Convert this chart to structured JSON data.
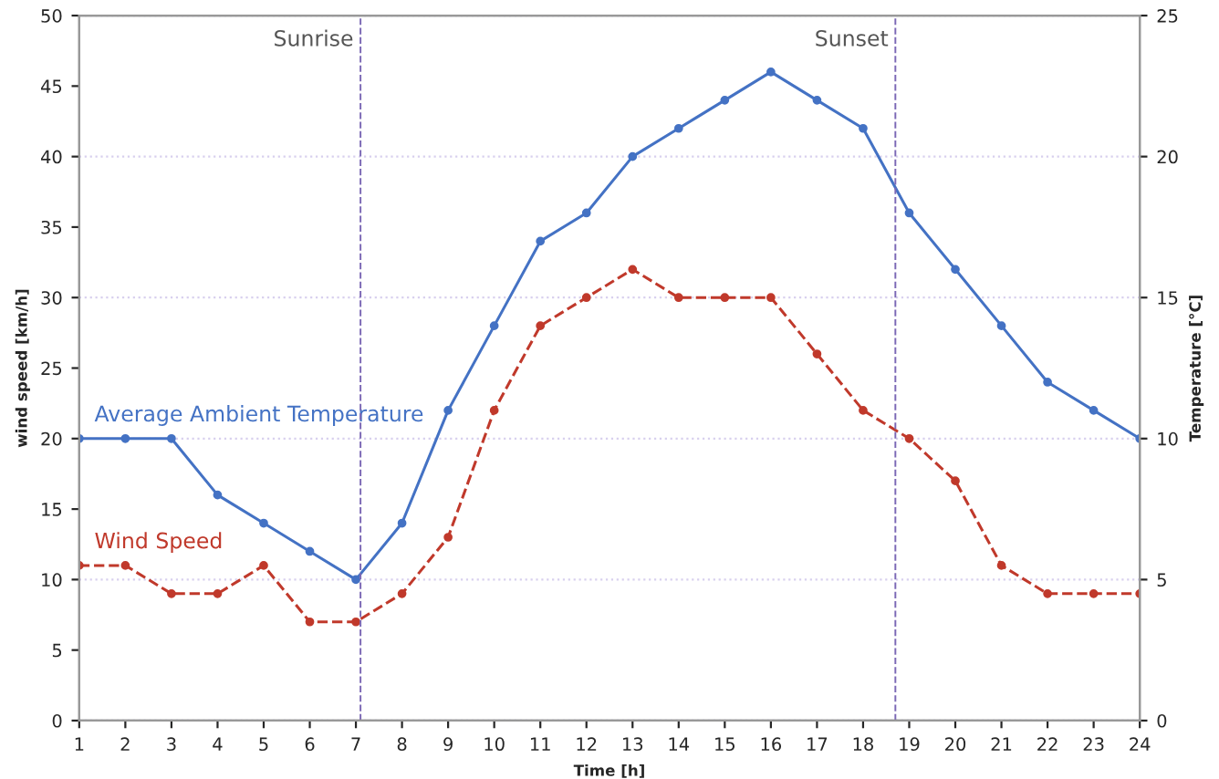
{
  "chart_data": {
    "type": "line",
    "xlabel": "Time [h]",
    "ylabel": "wind speed [km/h]",
    "y2label": "Temperature [°C]",
    "x": [
      1,
      2,
      3,
      4,
      5,
      6,
      7,
      8,
      9,
      10,
      11,
      12,
      13,
      14,
      15,
      16,
      17,
      18,
      19,
      20,
      21,
      22,
      23,
      24
    ],
    "series": [
      {
        "name": "Average Ambient Temperature",
        "color": "#4472c4",
        "axis": "y2",
        "line_style": "solid",
        "marker": "circle",
        "values": [
          10,
          10,
          10,
          8,
          7,
          6,
          5,
          7,
          11,
          14,
          17,
          18,
          20,
          21,
          22,
          23,
          22,
          21,
          18,
          16,
          14,
          12,
          11,
          10
        ]
      },
      {
        "name": "Wind Speed",
        "color": "#c0392b",
        "axis": "y",
        "line_style": "dashed",
        "marker": "circle",
        "values": [
          11,
          11,
          9,
          9,
          11,
          7,
          7,
          9,
          13,
          22,
          28,
          30,
          32,
          30,
          30,
          30,
          26,
          22,
          20,
          17,
          11,
          9,
          9,
          9
        ]
      }
    ],
    "xlim": [
      1,
      24
    ],
    "xticks": [
      1,
      2,
      3,
      4,
      5,
      6,
      7,
      8,
      9,
      10,
      11,
      12,
      13,
      14,
      15,
      16,
      17,
      18,
      19,
      20,
      21,
      22,
      23,
      24
    ],
    "ylim": [
      0,
      50
    ],
    "yticks": [
      0,
      5,
      10,
      15,
      20,
      25,
      30,
      35,
      40,
      45,
      50
    ],
    "y2lim": [
      0,
      25
    ],
    "y2ticks": [
      0,
      5,
      10,
      15,
      20,
      25
    ],
    "grid": "y2",
    "legend": false,
    "ref_lines": [
      {
        "axis": "x",
        "value": 7.1,
        "label": "Sunrise",
        "color": "#7b68b5",
        "line_style": "dashed"
      },
      {
        "axis": "x",
        "value": 18.7,
        "label": "Sunset",
        "color": "#7b68b5",
        "line_style": "dashed"
      }
    ]
  }
}
